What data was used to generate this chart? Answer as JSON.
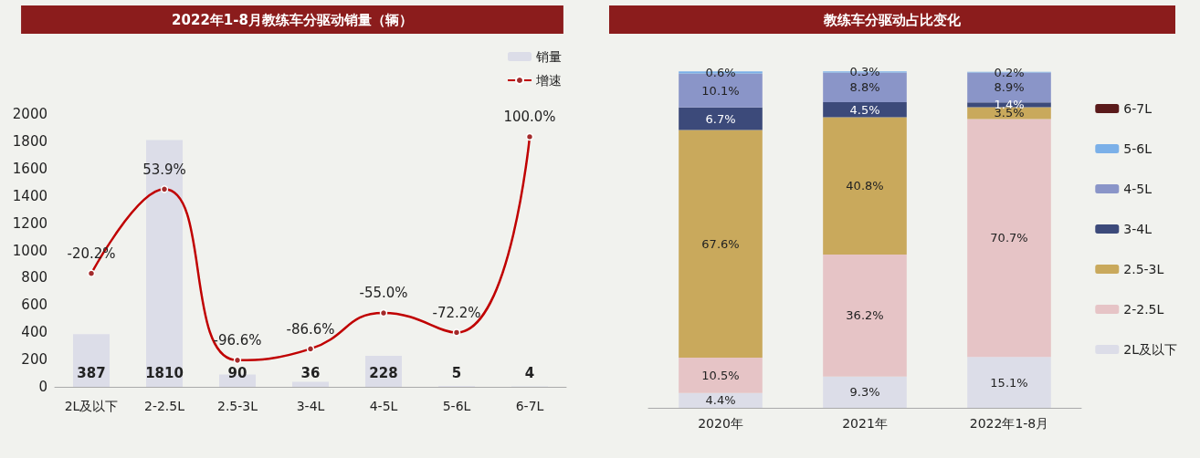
{
  "chart_data": [
    {
      "type": "bar",
      "title": "2022年1-8月教练车分驱动销量（辆）",
      "categories": [
        "2L及以下",
        "2-2.5L",
        "2.5-3L",
        "3-4L",
        "4-5L",
        "5-6L",
        "6-7L"
      ],
      "ylim": [
        0,
        2000
      ],
      "yticks": [
        0,
        200,
        400,
        600,
        800,
        1000,
        1200,
        1400,
        1600,
        1800,
        2000
      ],
      "grid": false,
      "legend": "top right",
      "series": [
        {
          "name": "销量",
          "color": "#dcdde8",
          "values": [
            387,
            1810,
            90,
            36,
            228,
            5,
            4
          ],
          "data_labels": true
        },
        {
          "name": "增速",
          "type": "line",
          "axis": "y2",
          "color": "#c00000",
          "marker": "circle",
          "values": [
            -20.2,
            53.9,
            -96.6,
            -86.6,
            -55.0,
            -72.2,
            100.0
          ],
          "value_labels": [
            "-20.2%",
            "53.9%",
            "-96.6%",
            "-86.6%",
            "-55.0%",
            "-72.2%",
            "100.0%"
          ]
        }
      ]
    },
    {
      "type": "bar",
      "title": "教练车分驱动占比变化",
      "categories": [
        "2020年",
        "2021年",
        "2022年1-8月"
      ],
      "stacked": true,
      "ylim": [
        0,
        100
      ],
      "tick_labels": "x",
      "grid": false,
      "legend": "right",
      "series": [
        {
          "name": "2L及以下",
          "color": "#dcdde8",
          "values": [
            4.4,
            9.3,
            15.1
          ],
          "value_labels": [
            "4.4%",
            "9.3%",
            "15.1%"
          ]
        },
        {
          "name": "2-2.5L",
          "color": "#e6c4c6",
          "values": [
            10.5,
            36.2,
            70.7
          ],
          "value_labels": [
            "10.5%",
            "36.2%",
            "70.7%"
          ]
        },
        {
          "name": "2.5-3L",
          "color": "#c9a95c",
          "values": [
            67.6,
            40.8,
            3.5
          ],
          "value_labels": [
            "67.6%",
            "40.8%",
            "3.5%"
          ]
        },
        {
          "name": "3-4L",
          "color": "#3c4a7a",
          "values": [
            6.7,
            4.5,
            1.4
          ],
          "value_labels": [
            "6.7%",
            "4.5%",
            "1.4%"
          ]
        },
        {
          "name": "4-5L",
          "color": "#8a95c8",
          "values": [
            10.1,
            8.8,
            8.9
          ],
          "value_labels": [
            "10.1%",
            "8.8%",
            "8.9%"
          ]
        },
        {
          "name": "5-6L",
          "color": "#7bb0e8",
          "values": [
            0.6,
            0.3,
            0.2
          ],
          "value_labels": [
            "0.6%",
            "0.3%",
            "0.2%"
          ]
        },
        {
          "name": "6-7L",
          "color": "#5a1a1a",
          "values": [
            null,
            null,
            null
          ]
        }
      ]
    }
  ]
}
